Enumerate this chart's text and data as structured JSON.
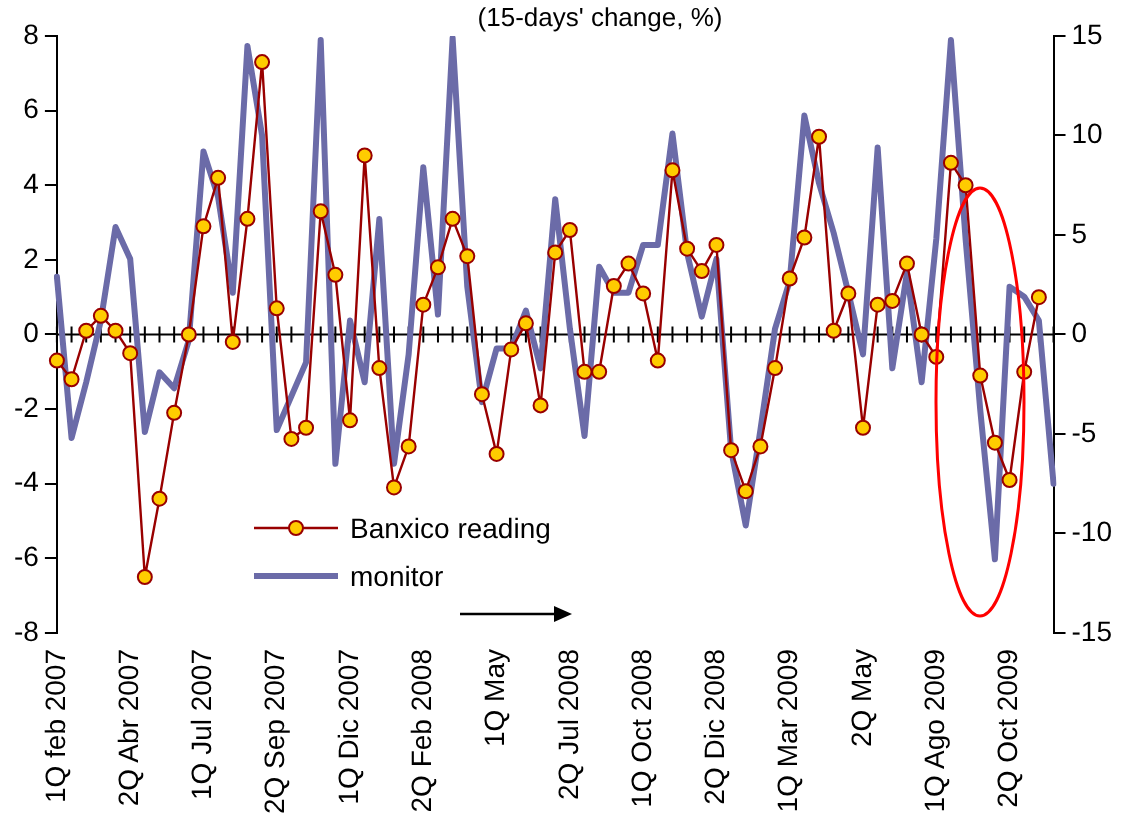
{
  "chart_data": {
    "type": "line",
    "title": "(15-days' change, %)",
    "categories": [
      "1Q feb 2007",
      null,
      null,
      null,
      null,
      "2Q Abr 2007",
      null,
      null,
      null,
      null,
      "1Q Jul 2007",
      null,
      null,
      null,
      null,
      "2Q Sep 2007",
      null,
      null,
      null,
      null,
      "1Q Dic 2007",
      null,
      null,
      null,
      null,
      "2Q Feb 2008",
      null,
      null,
      null,
      null,
      "1Q May",
      null,
      null,
      null,
      null,
      "2Q Jul 2008",
      null,
      null,
      null,
      null,
      "1Q Oct 2008",
      null,
      null,
      null,
      null,
      "2Q Dic 2008",
      null,
      null,
      null,
      null,
      "1Q Mar 2009",
      null,
      null,
      null,
      null,
      "2Q May",
      null,
      null,
      null,
      null,
      "1Q Ago 2009",
      null,
      null,
      null,
      null,
      "2Q Oct 2009",
      null,
      null,
      null
    ],
    "series": [
      {
        "name": "Banxico reading",
        "color": "#990000",
        "values": [
          -0.7,
          -1.2,
          0.1,
          0.5,
          0.1,
          -0.5,
          -6.5,
          -4.4,
          -2.1,
          0.0,
          2.9,
          4.2,
          -0.2,
          3.1,
          7.3,
          0.7,
          -2.8,
          -2.5,
          3.3,
          1.6,
          -2.3,
          4.8,
          -0.9,
          -4.1,
          -3.0,
          0.8,
          1.8,
          3.1,
          2.1,
          -1.6,
          -3.2,
          -0.4,
          0.3,
          -1.9,
          2.2,
          2.8,
          -1.0,
          -1.0,
          1.3,
          1.9,
          1.1,
          -0.7,
          4.4,
          2.3,
          1.7,
          2.4,
          -3.1,
          -4.2,
          -3.0,
          -0.9,
          1.5,
          2.6,
          5.3,
          0.1,
          1.1,
          -2.5,
          0.8,
          0.9,
          1.9,
          0.0,
          -0.6,
          4.6,
          4.0,
          -1.1,
          -2.9,
          -3.9,
          -1.0,
          1.0,
          null
        ]
      },
      {
        "name": "monitor",
        "axis": "y2",
        "marker": "none",
        "color": "#6b6ba8",
        "values": [
          2.9,
          -5.2,
          -2.4,
          0.7,
          5.4,
          3.8,
          -4.9,
          -1.9,
          -2.7,
          -0.3,
          9.2,
          6.9,
          2.1,
          14.5,
          10.0,
          -4.8,
          -3.1,
          -1.4,
          14.8,
          -6.5,
          0.7,
          -2.4,
          5.8,
          -6.5,
          -1.0,
          8.4,
          1.0,
          14.9,
          2.4,
          -3.4,
          -0.7,
          -0.7,
          1.2,
          -1.7,
          6.8,
          0.3,
          -5.1,
          3.4,
          2.1,
          2.1,
          4.5,
          4.5,
          10.1,
          4.1,
          0.9,
          3.8,
          -5.8,
          -9.6,
          -4.8,
          0.3,
          2.7,
          11.0,
          7.6,
          5.1,
          2.1,
          -1.0,
          9.4,
          -1.7,
          3.1,
          -2.4,
          4.8,
          14.8,
          4.8,
          -3.8,
          -11.3,
          2.4,
          1.9,
          0.7,
          -7.5
        ]
      }
    ],
    "ylim": [
      -8,
      8
    ],
    "yticks": [
      -8,
      -6,
      -4,
      -2,
      0,
      2,
      4,
      6,
      8
    ],
    "y2lim": [
      -15,
      15
    ],
    "y2ticks": [
      -15,
      -10,
      -5,
      0,
      5,
      10,
      15
    ],
    "ref_lines": [
      {
        "axis": "y",
        "value": 0,
        "color": "#000000"
      }
    ],
    "marker": "circle",
    "line_style": "solid",
    "grid": false,
    "legend": "bottom"
  }
}
